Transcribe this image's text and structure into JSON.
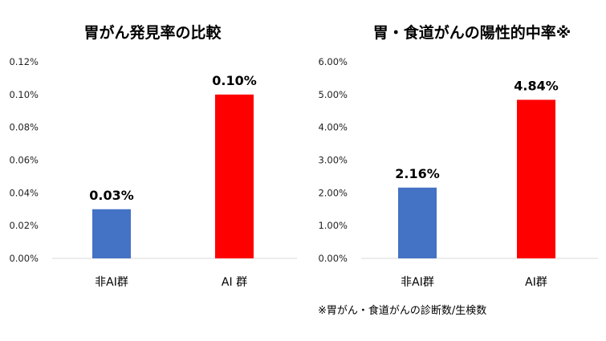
{
  "chart_data": [
    {
      "type": "bar",
      "title": "胃がん発見率の比較",
      "categories": [
        "非AI群",
        "AI 群"
      ],
      "values": [
        0.03,
        0.1
      ],
      "data_labels": [
        "0.03%",
        "0.10%"
      ],
      "colors": [
        "#4472C4",
        "#FF0000"
      ],
      "ylim": [
        0,
        0.12
      ],
      "yticks": [
        "0.00%",
        "0.02%",
        "0.04%",
        "0.06%",
        "0.08%",
        "0.10%",
        "0.12%"
      ],
      "xlabel": "",
      "ylabel": "",
      "grid": false
    },
    {
      "type": "bar",
      "title": "胃・食道がんの陽性的中率※",
      "categories": [
        "非AI群",
        "AI群"
      ],
      "values": [
        2.16,
        4.84
      ],
      "data_labels": [
        "2.16%",
        "4.84%"
      ],
      "colors": [
        "#4472C4",
        "#FF0000"
      ],
      "ylim": [
        0,
        6
      ],
      "yticks": [
        "0.00%",
        "1.00%",
        "2.00%",
        "3.00%",
        "4.00%",
        "5.00%",
        "6.00%"
      ],
      "xlabel": "",
      "ylabel": "",
      "grid": false,
      "footnote": "※胃がん・食道がんの診断数/生検数"
    }
  ]
}
